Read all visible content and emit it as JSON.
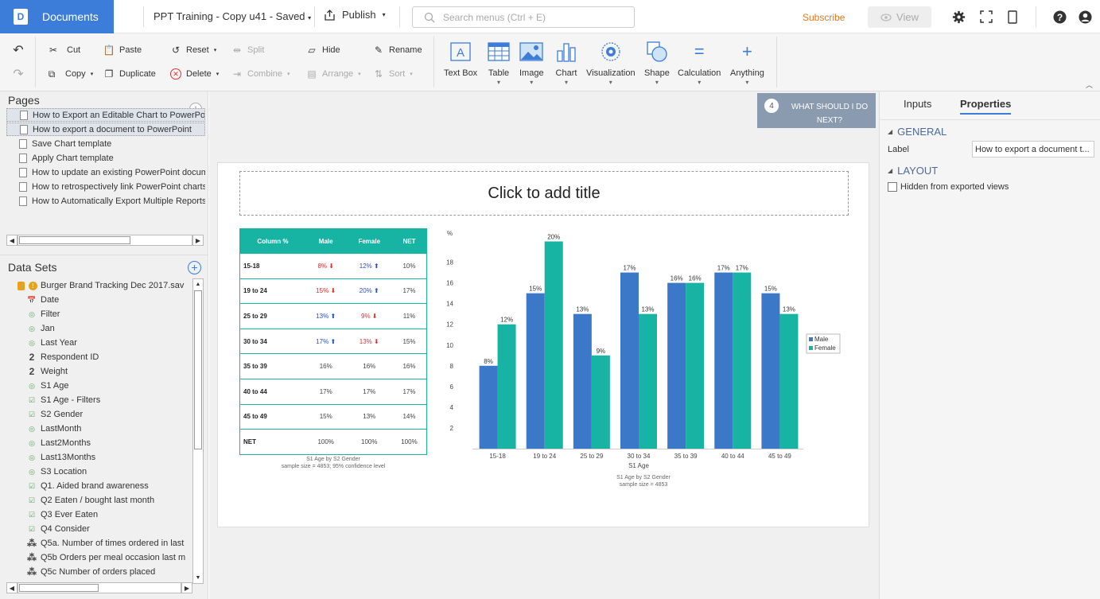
{
  "topbar": {
    "documents_label": "Documents",
    "doc_title": "PPT Training - Copy u41 - Saved",
    "publish_label": "Publish",
    "search_placeholder": "Search menus (Ctrl + E)",
    "subscribe_label": "Subscribe",
    "view_label": "View"
  },
  "ribbon": {
    "cut": "Cut",
    "copy": "Copy",
    "paste": "Paste",
    "duplicate": "Duplicate",
    "reset": "Reset",
    "delete": "Delete",
    "split": "Split",
    "combine": "Combine",
    "hide": "Hide",
    "arrange": "Arrange",
    "rename": "Rename",
    "sort": "Sort",
    "big": [
      "Text Box",
      "Table",
      "Image",
      "Chart",
      "Visualization",
      "Shape",
      "Calculation",
      "Anything"
    ]
  },
  "pages": {
    "title": "Pages",
    "items": [
      "How to Export an Editable Chart to PowerPoint",
      "How to export a document to PowerPoint",
      "Save Chart template",
      "Apply Chart template",
      "How to update an existing PowerPoint document",
      "How to retrospectively link PowerPoint charts",
      "How to Automatically Export Multiple Reports"
    ]
  },
  "datasets": {
    "title": "Data Sets",
    "file": "Burger Brand Tracking Dec 2017.sav",
    "items": [
      {
        "label": "Date",
        "icon": "date"
      },
      {
        "label": "Filter",
        "icon": "cat"
      },
      {
        "label": "Jan",
        "icon": "cat"
      },
      {
        "label": "Last Year",
        "icon": "cat"
      },
      {
        "label": "Respondent ID",
        "icon": "num"
      },
      {
        "label": "Weight",
        "icon": "num"
      },
      {
        "label": "S1 Age",
        "icon": "cat"
      },
      {
        "label": "S1 Age - Filters",
        "icon": "multi"
      },
      {
        "label": "S2 Gender",
        "icon": "multi"
      },
      {
        "label": "LastMonth",
        "icon": "cat"
      },
      {
        "label": "Last2Months",
        "icon": "cat"
      },
      {
        "label": "Last13Months",
        "icon": "cat"
      },
      {
        "label": "S3 Location",
        "icon": "cat"
      },
      {
        "label": "Q1. Aided brand awareness",
        "icon": "multi"
      },
      {
        "label": "Q2 Eaten / bought last month",
        "icon": "multi"
      },
      {
        "label": "Q3 Ever Eaten",
        "icon": "multi"
      },
      {
        "label": "Q4 Consider",
        "icon": "multi"
      },
      {
        "label": "Q5a. Number of times ordered in last",
        "icon": "numgrid"
      },
      {
        "label": "Q5b Orders per meal occasion last m",
        "icon": "numgrid"
      },
      {
        "label": "Q5c Number of orders placed",
        "icon": "numgrid"
      }
    ]
  },
  "hint": {
    "number": "4",
    "text": "WHAT SHOULD I DO NEXT?"
  },
  "slide": {
    "title_placeholder": "Click to add title",
    "table": {
      "headers": [
        "Column %",
        "Male",
        "Female",
        "NET"
      ],
      "rows": [
        {
          "label": "15-18",
          "male": "8%",
          "male_dir": "dn",
          "female": "12%",
          "female_dir": "up",
          "net": "10%"
        },
        {
          "label": "19 to 24",
          "male": "15%",
          "male_dir": "dn",
          "female": "20%",
          "female_dir": "up",
          "net": "17%"
        },
        {
          "label": "25 to 29",
          "male": "13%",
          "male_dir": "up",
          "female": "9%",
          "female_dir": "dn",
          "net": "11%"
        },
        {
          "label": "30 to 34",
          "male": "17%",
          "male_dir": "up",
          "female": "13%",
          "female_dir": "dn",
          "net": "15%"
        },
        {
          "label": "35 to 39",
          "male": "16%",
          "male_dir": "",
          "female": "16%",
          "female_dir": "",
          "net": "16%"
        },
        {
          "label": "40 to 44",
          "male": "17%",
          "male_dir": "",
          "female": "17%",
          "female_dir": "",
          "net": "17%"
        },
        {
          "label": "45 to 49",
          "male": "15%",
          "male_dir": "",
          "female": "13%",
          "female_dir": "",
          "net": "14%"
        },
        {
          "label": "NET",
          "male": "100%",
          "male_dir": "",
          "female": "100%",
          "female_dir": "",
          "net": "100%"
        }
      ],
      "note1": "S1 Age by S2 Gender",
      "note2": "sample size = 4853; 95% confidence level"
    },
    "chart_note1": "S1 Age by S2 Gender",
    "chart_note2": "sample size = 4853"
  },
  "chart_data": {
    "type": "bar",
    "categories": [
      "15-18",
      "19 to 24",
      "25 to 29",
      "30 to 34",
      "35 to 39",
      "40 to 44",
      "45 to 49"
    ],
    "series": [
      {
        "name": "Male",
        "values": [
          8,
          15,
          13,
          17,
          16,
          17,
          15
        ],
        "labels": [
          "8%",
          "15%",
          "13%",
          "17%",
          "16%",
          "17%",
          "15%"
        ],
        "color": "#3c78c8"
      },
      {
        "name": "Female",
        "values": [
          12,
          20,
          9,
          13,
          16,
          17,
          13
        ],
        "labels": [
          "12%",
          "20%",
          "9%",
          "13%",
          "16%",
          "17%",
          "13%"
        ],
        "color": "#17b3a3"
      }
    ],
    "xlabel": "S1 Age",
    "ylabel": "%",
    "yticks": [
      2,
      4,
      6,
      8,
      10,
      12,
      14,
      16,
      18
    ],
    "ylim": [
      0,
      20.5
    ],
    "legend": "right",
    "grid": false
  },
  "right": {
    "tab_inputs": "Inputs",
    "tab_properties": "Properties",
    "general": "GENERAL",
    "label_caption": "Label",
    "label_value": "How to export a document t...",
    "layout": "LAYOUT",
    "hidden_label": "Hidden from exported views"
  }
}
